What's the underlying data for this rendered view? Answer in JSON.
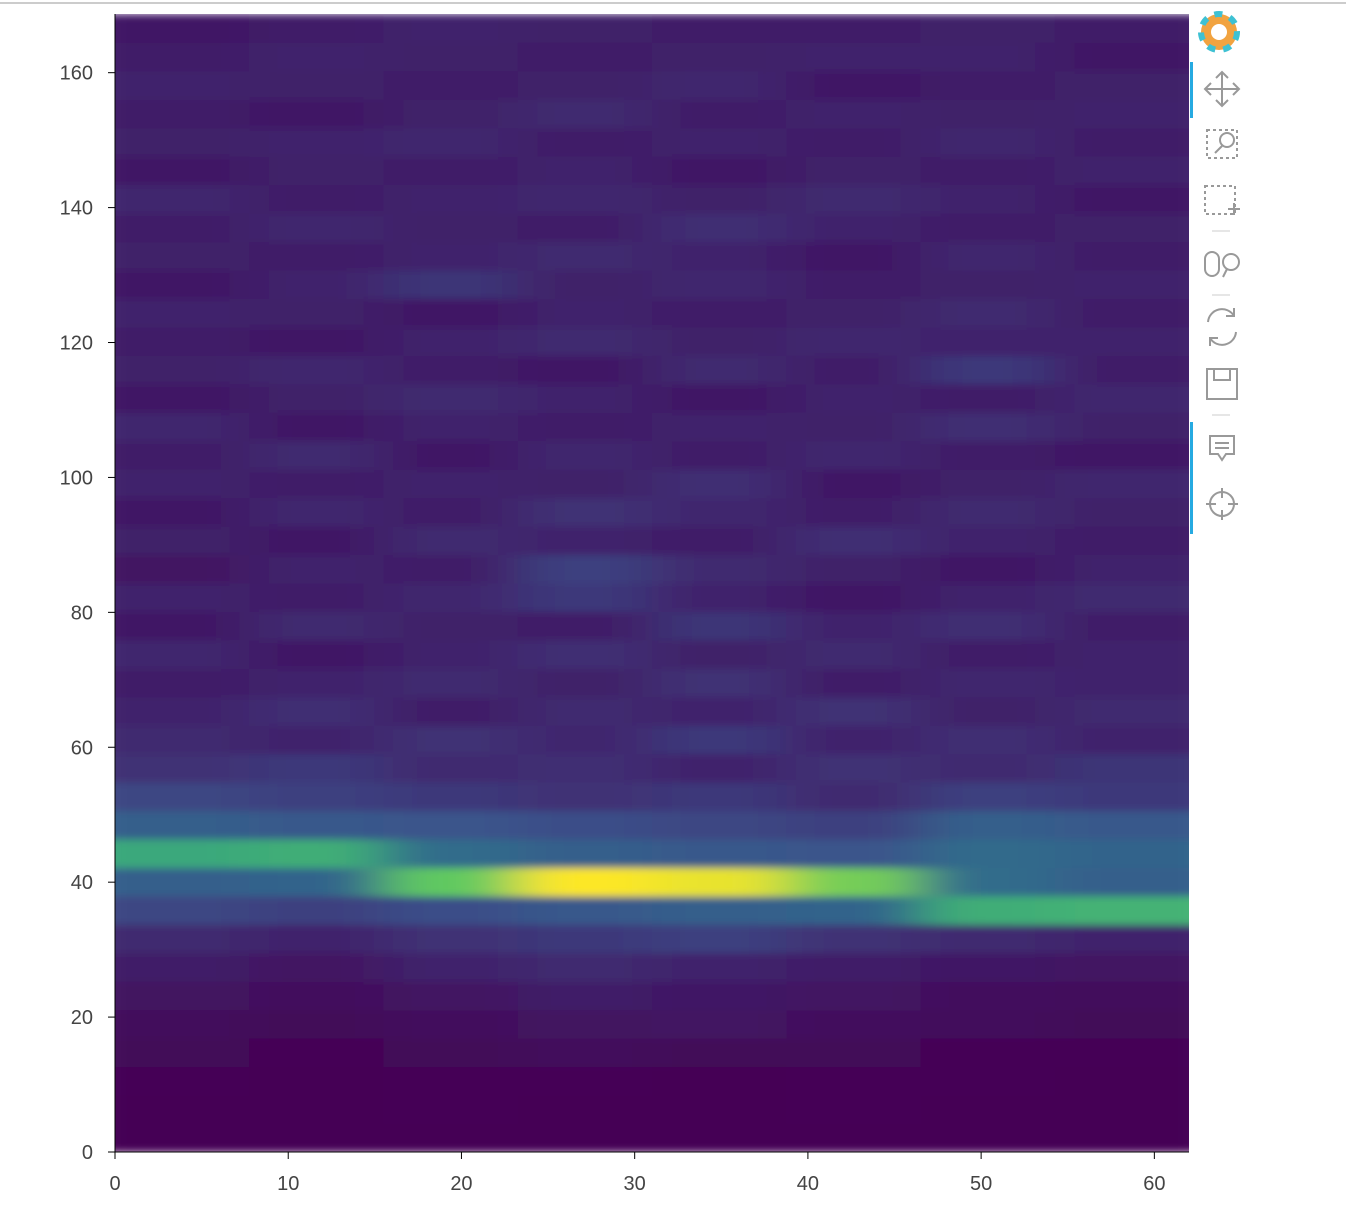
{
  "chart_data": {
    "type": "image",
    "colormap": "viridis",
    "xlim": [
      0,
      62
    ],
    "ylim": [
      0,
      168.7
    ],
    "xticks": [
      0,
      10,
      20,
      30,
      40,
      50,
      60
    ],
    "yticks": [
      0,
      20,
      40,
      60,
      80,
      100,
      120,
      140,
      160
    ],
    "z": [
      [
        2,
        2,
        2,
        2,
        2,
        2,
        2,
        2
      ],
      [
        2,
        2,
        3,
        2,
        2,
        3,
        2,
        2
      ],
      [
        3,
        2,
        3,
        3,
        2,
        3,
        3,
        2
      ],
      [
        4,
        3,
        4,
        5,
        4,
        4,
        3,
        3
      ],
      [
        5,
        4,
        6,
        7,
        8,
        6,
        5,
        4
      ],
      [
        7,
        6,
        8,
        10,
        9,
        8,
        6,
        5
      ],
      [
        10,
        8,
        12,
        14,
        12,
        10,
        9,
        8
      ],
      [
        14,
        12,
        16,
        18,
        20,
        16,
        14,
        12
      ],
      [
        22,
        20,
        24,
        28,
        30,
        32,
        60,
        62
      ],
      [
        30,
        32,
        72,
        95,
        92,
        75,
        35,
        30
      ],
      [
        58,
        60,
        35,
        30,
        28,
        26,
        34,
        32
      ],
      [
        30,
        28,
        26,
        24,
        22,
        20,
        30,
        28
      ],
      [
        22,
        20,
        18,
        16,
        18,
        14,
        20,
        18
      ],
      [
        16,
        18,
        14,
        15,
        12,
        16,
        14,
        17
      ],
      [
        14,
        12,
        16,
        13,
        18,
        12,
        15,
        12
      ],
      [
        12,
        15,
        10,
        14,
        12,
        16,
        11,
        14
      ],
      [
        10,
        12,
        14,
        11,
        16,
        10,
        13,
        12
      ],
      [
        13,
        9,
        12,
        15,
        11,
        14,
        10,
        12
      ],
      [
        9,
        14,
        11,
        10,
        17,
        12,
        15,
        10
      ],
      [
        12,
        10,
        13,
        18,
        12,
        9,
        12,
        14
      ],
      [
        8,
        12,
        10,
        20,
        14,
        11,
        9,
        12
      ],
      [
        11,
        9,
        14,
        12,
        10,
        15,
        12,
        10
      ],
      [
        9,
        13,
        10,
        16,
        13,
        10,
        14,
        11
      ],
      [
        12,
        10,
        12,
        11,
        15,
        9,
        11,
        13
      ],
      [
        10,
        14,
        9,
        13,
        10,
        13,
        10,
        9
      ],
      [
        13,
        9,
        12,
        10,
        12,
        11,
        15,
        11
      ],
      [
        9,
        11,
        14,
        12,
        9,
        12,
        10,
        13
      ],
      [
        11,
        13,
        10,
        9,
        14,
        10,
        18,
        10
      ],
      [
        10,
        9,
        12,
        14,
        11,
        13,
        12,
        12
      ],
      [
        12,
        11,
        9,
        12,
        10,
        11,
        14,
        10
      ],
      [
        9,
        12,
        17,
        11,
        13,
        10,
        11,
        12
      ],
      [
        11,
        10,
        12,
        14,
        12,
        9,
        13,
        10
      ],
      [
        10,
        13,
        11,
        10,
        15,
        12,
        10,
        11
      ],
      [
        13,
        10,
        12,
        13,
        11,
        14,
        12,
        9
      ],
      [
        9,
        11,
        10,
        12,
        9,
        11,
        10,
        12
      ],
      [
        11,
        12,
        13,
        10,
        12,
        10,
        13,
        10
      ],
      [
        10,
        9,
        11,
        14,
        10,
        12,
        11,
        12
      ],
      [
        12,
        11,
        10,
        11,
        13,
        9,
        10,
        11
      ],
      [
        10,
        12,
        11,
        10,
        11,
        12,
        12,
        9
      ],
      [
        9,
        10,
        12,
        11,
        10,
        10,
        11,
        10
      ]
    ]
  }
}
